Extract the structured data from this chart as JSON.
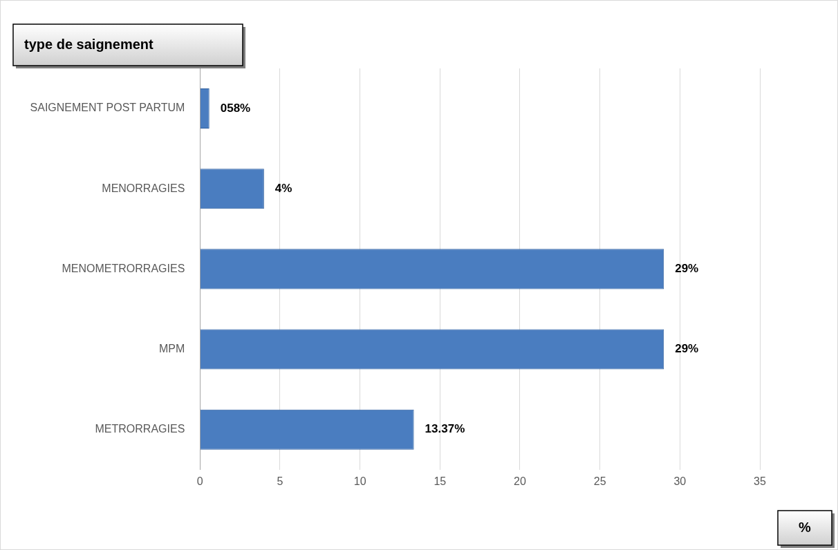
{
  "chart_data": {
    "type": "bar",
    "orientation": "horizontal",
    "ylabel": "type de saignement",
    "xlabel": "%",
    "categories": [
      "SAIGNEMENT POST PARTUM",
      "MENORRAGIES",
      "MENOMETRORRAGIES",
      "MPM",
      "METRORRAGIES"
    ],
    "values": [
      0.58,
      4,
      29,
      29,
      13.37
    ],
    "value_labels": [
      "058%",
      "4%",
      "29%",
      "29%",
      "13.37%"
    ],
    "color": "#4a7dc0",
    "xlim": [
      0,
      35
    ],
    "xticks": [
      0,
      5,
      10,
      15,
      20,
      25,
      30,
      35
    ],
    "grid": "x",
    "legend": false
  }
}
